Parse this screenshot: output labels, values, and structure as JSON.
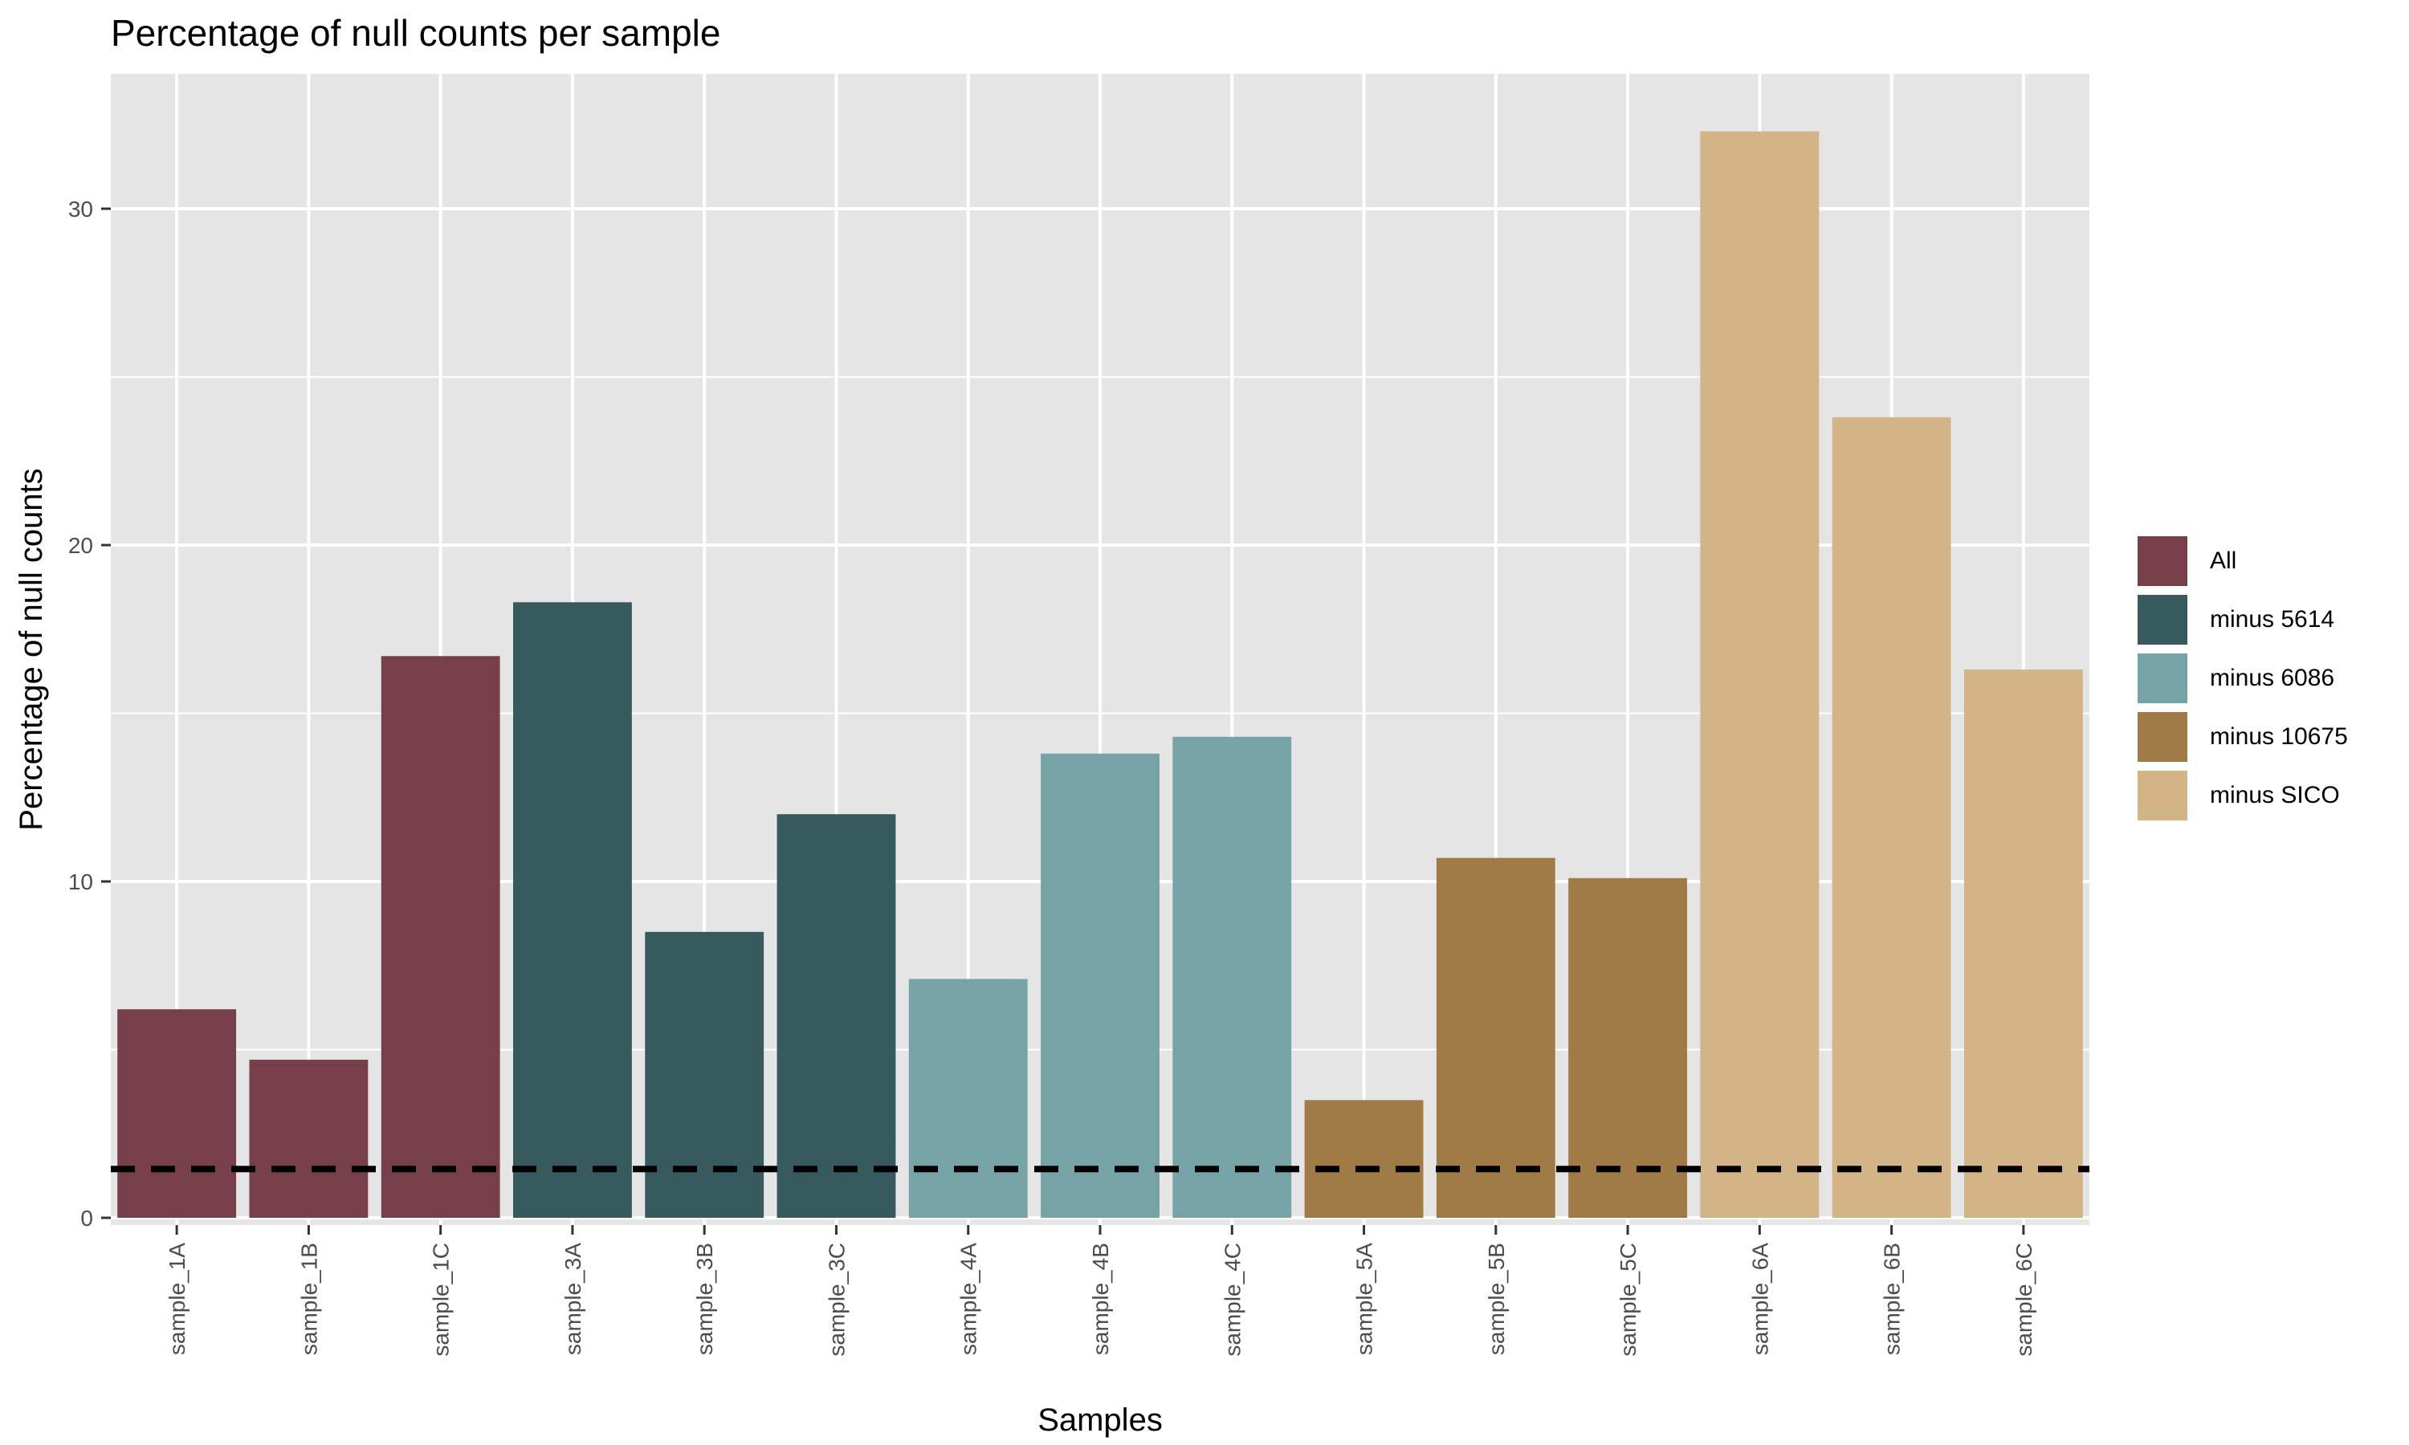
{
  "chart_data": {
    "type": "bar",
    "title": "Percentage of null counts per sample",
    "xlabel": "Samples",
    "ylabel": "Percentage of null counts",
    "ylim": [
      0,
      34
    ],
    "yticks": [
      0,
      10,
      20,
      30
    ],
    "grid": true,
    "legend_position": "right",
    "categories": [
      "sample_1A",
      "sample_1B",
      "sample_1C",
      "sample_3A",
      "sample_3B",
      "sample_3C",
      "sample_4A",
      "sample_4B",
      "sample_4C",
      "sample_5A",
      "sample_5B",
      "sample_5C",
      "sample_6A",
      "sample_6B",
      "sample_6C"
    ],
    "values": [
      6.2,
      4.7,
      16.7,
      18.3,
      8.5,
      12.0,
      7.1,
      13.8,
      14.3,
      3.5,
      10.7,
      10.1,
      32.3,
      23.8,
      16.3
    ],
    "groups": [
      "All",
      "All",
      "All",
      "minus 5614",
      "minus 5614",
      "minus 5614",
      "minus 6086",
      "minus 6086",
      "minus 6086",
      "minus 10675",
      "minus 10675",
      "minus 10675",
      "minus SICO",
      "minus SICO",
      "minus SICO"
    ],
    "reference_line": {
      "y": 1.45,
      "style": "dashed",
      "color": "#000000"
    },
    "legend": [
      {
        "label": "All",
        "color": "#763F4A"
      },
      {
        "label": "minus 5614",
        "color": "#365A5D"
      },
      {
        "label": "minus 6086",
        "color": "#76A3A5"
      },
      {
        "label": "minus 10675",
        "color": "#A07B45"
      },
      {
        "label": "minus SICO",
        "color": "#D2B487"
      }
    ],
    "panel_background": "#E5E5E5",
    "grid_color": "#FFFFFF"
  }
}
